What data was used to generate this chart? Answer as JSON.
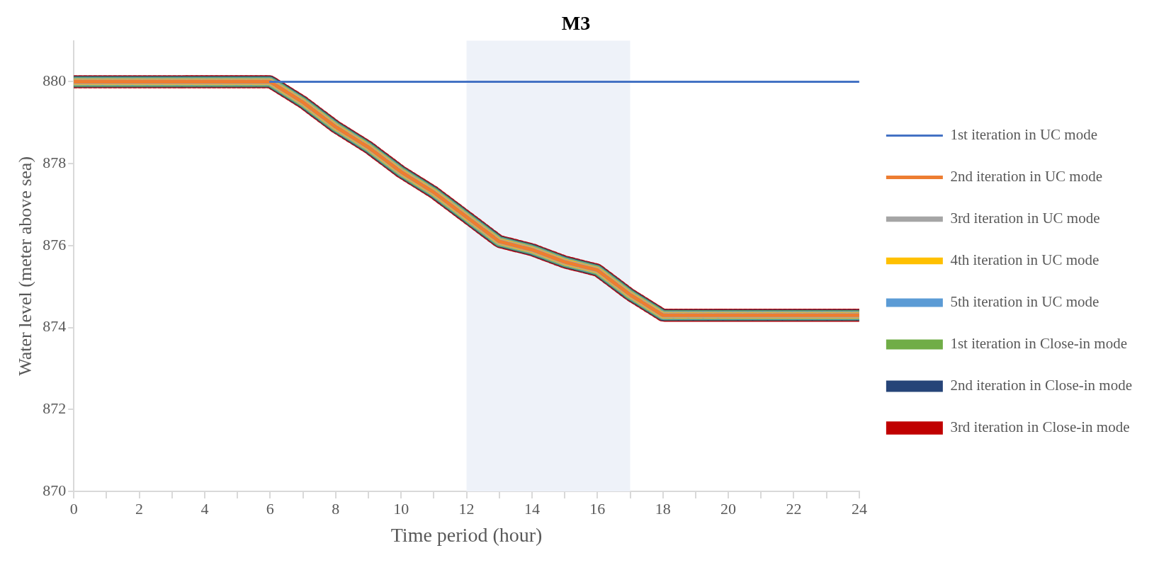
{
  "chart_data": {
    "type": "line",
    "title": "M3",
    "xlabel": "Time period (hour)",
    "ylabel": "Water level (meter above sea)",
    "x": [
      0,
      1,
      2,
      3,
      4,
      5,
      6,
      7,
      8,
      9,
      10,
      11,
      12,
      13,
      14,
      15,
      16,
      17,
      18,
      19,
      20,
      21,
      22,
      23,
      24
    ],
    "xlim": [
      0,
      24
    ],
    "xticks": [
      0,
      {
        "value": 1,
        "label": null
      },
      2,
      {
        "value": 3,
        "label": null
      },
      4,
      {
        "value": 5,
        "label": null
      },
      6,
      {
        "value": 7,
        "label": null
      },
      8,
      {
        "value": 9,
        "label": null
      },
      10,
      {
        "value": 11,
        "label": null
      },
      12,
      {
        "value": 13,
        "label": null
      },
      14,
      {
        "value": 15,
        "label": null
      },
      16,
      {
        "value": 17,
        "label": null
      },
      18,
      {
        "value": 19,
        "label": null
      },
      20,
      {
        "value": 21,
        "label": null
      },
      22,
      {
        "value": 23,
        "label": null
      },
      24
    ],
    "ylim": [
      870,
      881
    ],
    "yticks": [
      870,
      872,
      874,
      876,
      878,
      880
    ],
    "grid": false,
    "legend": "right",
    "marker": "none",
    "bands": [
      {
        "axis": "x",
        "from": 12,
        "to": 17,
        "color": "#eef2f9"
      }
    ],
    "series": [
      {
        "name": "1st iteration in UC mode",
        "color": "#4472c4",
        "line_style": "solid",
        "values": [
          null,
          null,
          null,
          null,
          null,
          null,
          880,
          880,
          880,
          880,
          880,
          880,
          880,
          880,
          880,
          880,
          880,
          880,
          880,
          880,
          880,
          880,
          880,
          880,
          880
        ]
      },
      {
        "name": "2nd iteration in UC mode",
        "color": "#ed7d31",
        "line_style": "dashed",
        "values": [
          880,
          880,
          880,
          880,
          880,
          880,
          880,
          879.5,
          878.9,
          878.4,
          877.8,
          877.3,
          876.7,
          876.1,
          875.9,
          875.6,
          875.4,
          874.8,
          874.3,
          874.3,
          874.3,
          874.3,
          874.3,
          874.3,
          874.3
        ]
      },
      {
        "name": "3rd iteration in UC mode",
        "color": "#a5a5a5",
        "line_style": "dashed",
        "values": [
          880,
          880,
          880,
          880,
          880,
          880,
          880,
          879.5,
          878.9,
          878.4,
          877.8,
          877.3,
          876.7,
          876.1,
          875.9,
          875.6,
          875.4,
          874.8,
          874.3,
          874.3,
          874.3,
          874.3,
          874.3,
          874.3,
          874.3
        ]
      },
      {
        "name": "4th iteration in UC mode",
        "color": "#ffc000",
        "line_style": "dashed",
        "values": [
          880,
          880,
          880,
          880,
          880,
          880,
          880,
          879.5,
          878.9,
          878.4,
          877.8,
          877.3,
          876.7,
          876.1,
          875.9,
          875.6,
          875.4,
          874.8,
          874.3,
          874.3,
          874.3,
          874.3,
          874.3,
          874.3,
          874.3
        ]
      },
      {
        "name": "5th iteration in UC mode",
        "color": "#5b9bd5",
        "line_style": "dashed",
        "values": [
          880,
          880,
          880,
          880,
          880,
          880,
          880,
          879.5,
          878.9,
          878.4,
          877.8,
          877.3,
          876.7,
          876.1,
          875.9,
          875.6,
          875.4,
          874.8,
          874.3,
          874.3,
          874.3,
          874.3,
          874.3,
          874.3,
          874.3
        ]
      },
      {
        "name": "1st iteration in Close-in mode",
        "color": "#70ad47",
        "line_style": "dashed",
        "values": [
          880,
          880,
          880,
          880,
          880,
          880,
          880,
          879.5,
          878.9,
          878.4,
          877.8,
          877.3,
          876.7,
          876.1,
          875.9,
          875.6,
          875.4,
          874.8,
          874.3,
          874.3,
          874.3,
          874.3,
          874.3,
          874.3,
          874.3
        ]
      },
      {
        "name": "2nd iteration in Close-in mode",
        "color": "#264478",
        "line_style": "dashed",
        "values": [
          880,
          880,
          880,
          880,
          880,
          880,
          880,
          879.5,
          878.9,
          878.4,
          877.8,
          877.3,
          876.7,
          876.1,
          875.9,
          875.6,
          875.4,
          874.8,
          874.3,
          874.3,
          874.3,
          874.3,
          874.3,
          874.3,
          874.3
        ]
      },
      {
        "name": "3rd iteration in Close-in mode",
        "color": "#c00000",
        "line_style": "dotted",
        "values": [
          880,
          880,
          880,
          880,
          880,
          880,
          880,
          879.5,
          878.9,
          878.4,
          877.8,
          877.3,
          876.7,
          876.1,
          875.9,
          875.6,
          875.4,
          874.8,
          874.3,
          874.3,
          874.3,
          874.3,
          874.3,
          874.3,
          874.3
        ]
      }
    ]
  }
}
